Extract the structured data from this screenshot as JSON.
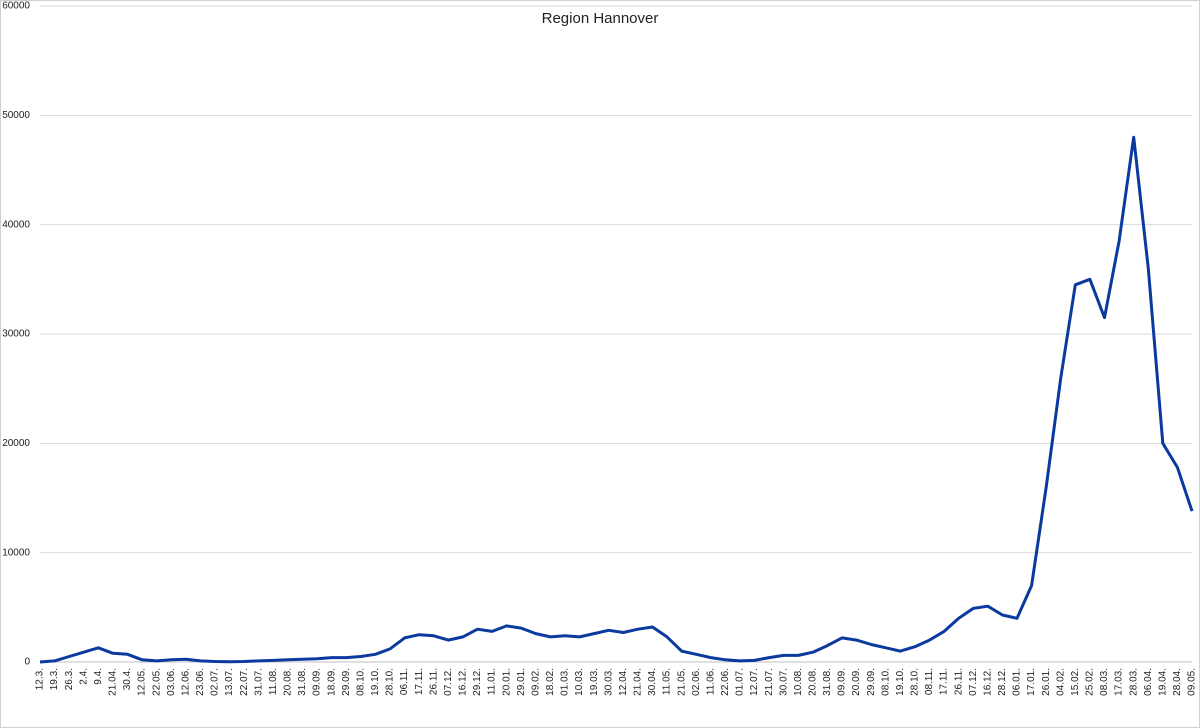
{
  "chart_data": {
    "type": "line",
    "title": "Region Hannover",
    "categories": [
      "12.3.",
      "19.3.",
      "26.3.",
      "2.4.",
      "9.4.",
      "21.04.",
      "30.4.",
      "12.05.",
      "22.05.",
      "03.06.",
      "12.06.",
      "23.06.",
      "02.07.",
      "13.07.",
      "22.07.",
      "31.07.",
      "11.08.",
      "20.08.",
      "31.08.",
      "09.09.",
      "18.09.",
      "29.09.",
      "08.10.",
      "19.10.",
      "28.10.",
      "06.11.",
      "17.11.",
      "26.11.",
      "07.12.",
      "16.12.",
      "29.12.",
      "11.01.",
      "20.01.",
      "29.01.",
      "09.02.",
      "18.02.",
      "01.03.",
      "10.03.",
      "19.03.",
      "30.03.",
      "12.04.",
      "21.04.",
      "30.04.",
      "11.05.",
      "21.05.",
      "02.06.",
      "11.06.",
      "22.06.",
      "01.07.",
      "12.07.",
      "21.07.",
      "30.07.",
      "10.08.",
      "20.08.",
      "31.08.",
      "09.09.",
      "20.09.",
      "29.09.",
      "08.10.",
      "19.10.",
      "28.10.",
      "08.11.",
      "17.11.",
      "26.11.",
      "07.12.",
      "16.12.",
      "28.12.",
      "06.01.",
      "17.01.",
      "26.01.",
      "04.02.",
      "15.02.",
      "25.02.",
      "08.03.",
      "17.03.",
      "28.03.",
      "06.04.",
      "19.04.",
      "28.04.",
      "09.05."
    ],
    "series": [
      {
        "color": "#0a3a9e",
        "values": [
          0,
          100,
          500,
          900,
          1300,
          800,
          700,
          200,
          100,
          200,
          250,
          100,
          50,
          30,
          50,
          100,
          150,
          200,
          250,
          300,
          400,
          400,
          500,
          700,
          1200,
          2200,
          2500,
          2400,
          2000,
          2300,
          3000,
          2800,
          3300,
          3100,
          2600,
          2300,
          2400,
          2300,
          2600,
          2900,
          2700,
          3000,
          3200,
          2300,
          1000,
          700,
          400,
          200,
          100,
          150,
          400,
          600,
          600,
          900,
          1500,
          2200,
          2000,
          1600,
          1300,
          1000,
          1400,
          2000,
          2800,
          4000,
          4900,
          5100,
          4300,
          4000,
          7000,
          16000,
          26000,
          34500,
          35000,
          31500,
          38500,
          48000,
          36000,
          20000,
          17800,
          13800
        ]
      }
    ],
    "ylim": [
      0,
      60000
    ],
    "yticks": [
      0,
      10000,
      20000,
      30000,
      40000,
      50000,
      60000
    ],
    "grid": true
  }
}
